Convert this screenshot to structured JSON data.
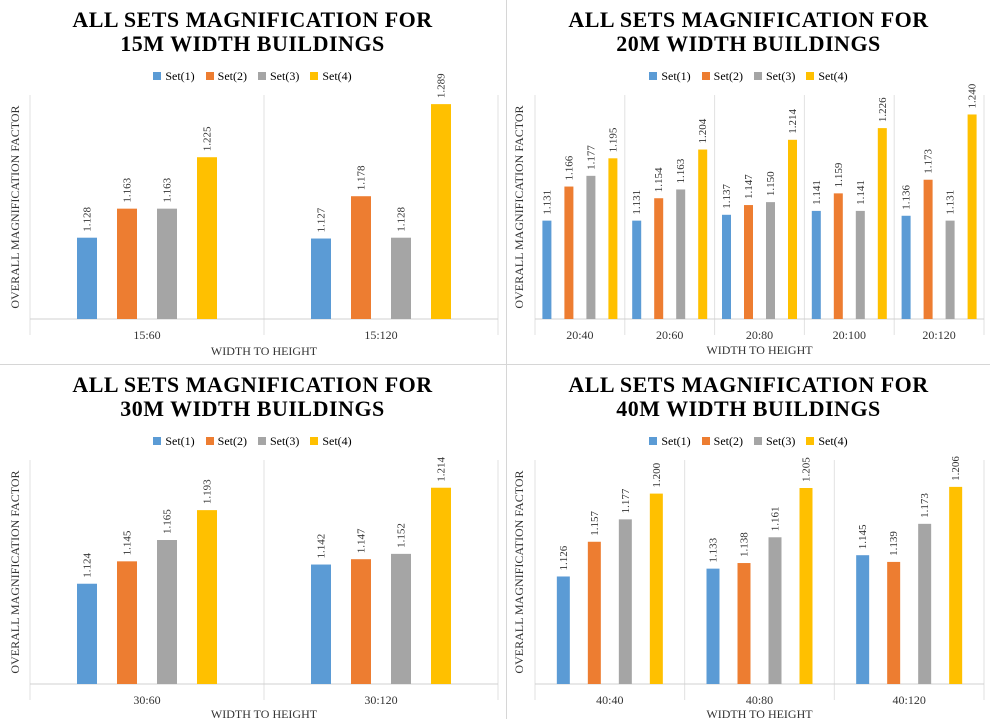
{
  "series_colors": [
    "#5b9bd5",
    "#ed7d31",
    "#a5a5a5",
    "#ffc000"
  ],
  "chart_data": [
    {
      "type": "bar",
      "title_line1": "ALL SETS MAGNIFICATION FOR",
      "title_line2": "15M WIDTH BUILDINGS",
      "xlabel": "WIDTH TO HEIGHT",
      "ylabel": "OVERALL MAGNIFICATION FACTOR",
      "categories": [
        "15:60",
        "15:120"
      ],
      "series": [
        {
          "name": "Set(1)",
          "values": [
            1.128,
            1.127
          ]
        },
        {
          "name": "Set(2)",
          "values": [
            1.163,
            1.178
          ]
        },
        {
          "name": "Set(3)",
          "values": [
            1.163,
            1.128
          ]
        },
        {
          "name": "Set(4)",
          "values": [
            1.225,
            1.289
          ]
        }
      ],
      "ylim": [
        1.03,
        1.3
      ],
      "legend": "top-center",
      "grid": false
    },
    {
      "type": "bar",
      "title_line1": "ALL SETS MAGNIFICATION FOR",
      "title_line2": "20M WIDTH BUILDINGS",
      "xlabel": "WIDTH TO HEIGHT",
      "ylabel": "OVERALL MAGNIFICATION FACTOR",
      "categories": [
        "20:40",
        "20:60",
        "20:80",
        "20:100",
        "20:120"
      ],
      "series": [
        {
          "name": "Set(1)",
          "values": [
            1.131,
            1.131,
            1.137,
            1.141,
            1.136
          ]
        },
        {
          "name": "Set(2)",
          "values": [
            1.166,
            1.154,
            1.147,
            1.159,
            1.173
          ]
        },
        {
          "name": "Set(3)",
          "values": [
            1.177,
            1.163,
            1.15,
            1.141,
            1.131
          ]
        },
        {
          "name": "Set(4)",
          "values": [
            1.195,
            1.204,
            1.214,
            1.226,
            1.24
          ]
        }
      ],
      "ylim": [
        1.03,
        1.26
      ],
      "legend": "top-center",
      "grid": false
    },
    {
      "type": "bar",
      "title_line1": "ALL SETS MAGNIFICATION FOR",
      "title_line2": "30M WIDTH BUILDINGS",
      "xlabel": "WIDTH TO HEIGHT",
      "ylabel": "OVERALL MAGNIFICATION FACTOR",
      "categories": [
        "30:60",
        "30:120"
      ],
      "series": [
        {
          "name": "Set(1)",
          "values": [
            1.124,
            1.142
          ]
        },
        {
          "name": "Set(2)",
          "values": [
            1.145,
            1.147
          ]
        },
        {
          "name": "Set(3)",
          "values": [
            1.165,
            1.152
          ]
        },
        {
          "name": "Set(4)",
          "values": [
            1.193,
            1.214
          ]
        }
      ],
      "ylim": [
        1.03,
        1.24
      ],
      "legend": "top-center",
      "grid": false
    },
    {
      "type": "bar",
      "title_line1": "ALL SETS MAGNIFICATION FOR",
      "title_line2": "40M WIDTH BUILDINGS",
      "xlabel": "WIDTH TO HEIGHT",
      "ylabel": "OVERALL MAGNIFICATION FACTOR",
      "categories": [
        "40:40",
        "40:80",
        "40:120"
      ],
      "series": [
        {
          "name": "Set(1)",
          "values": [
            1.126,
            1.133,
            1.145
          ]
        },
        {
          "name": "Set(2)",
          "values": [
            1.157,
            1.138,
            1.139
          ]
        },
        {
          "name": "Set(3)",
          "values": [
            1.177,
            1.161,
            1.173
          ]
        },
        {
          "name": "Set(4)",
          "values": [
            1.2,
            1.205,
            1.206
          ]
        }
      ],
      "ylim": [
        1.03,
        1.23
      ],
      "legend": "top-center",
      "grid": false
    }
  ]
}
